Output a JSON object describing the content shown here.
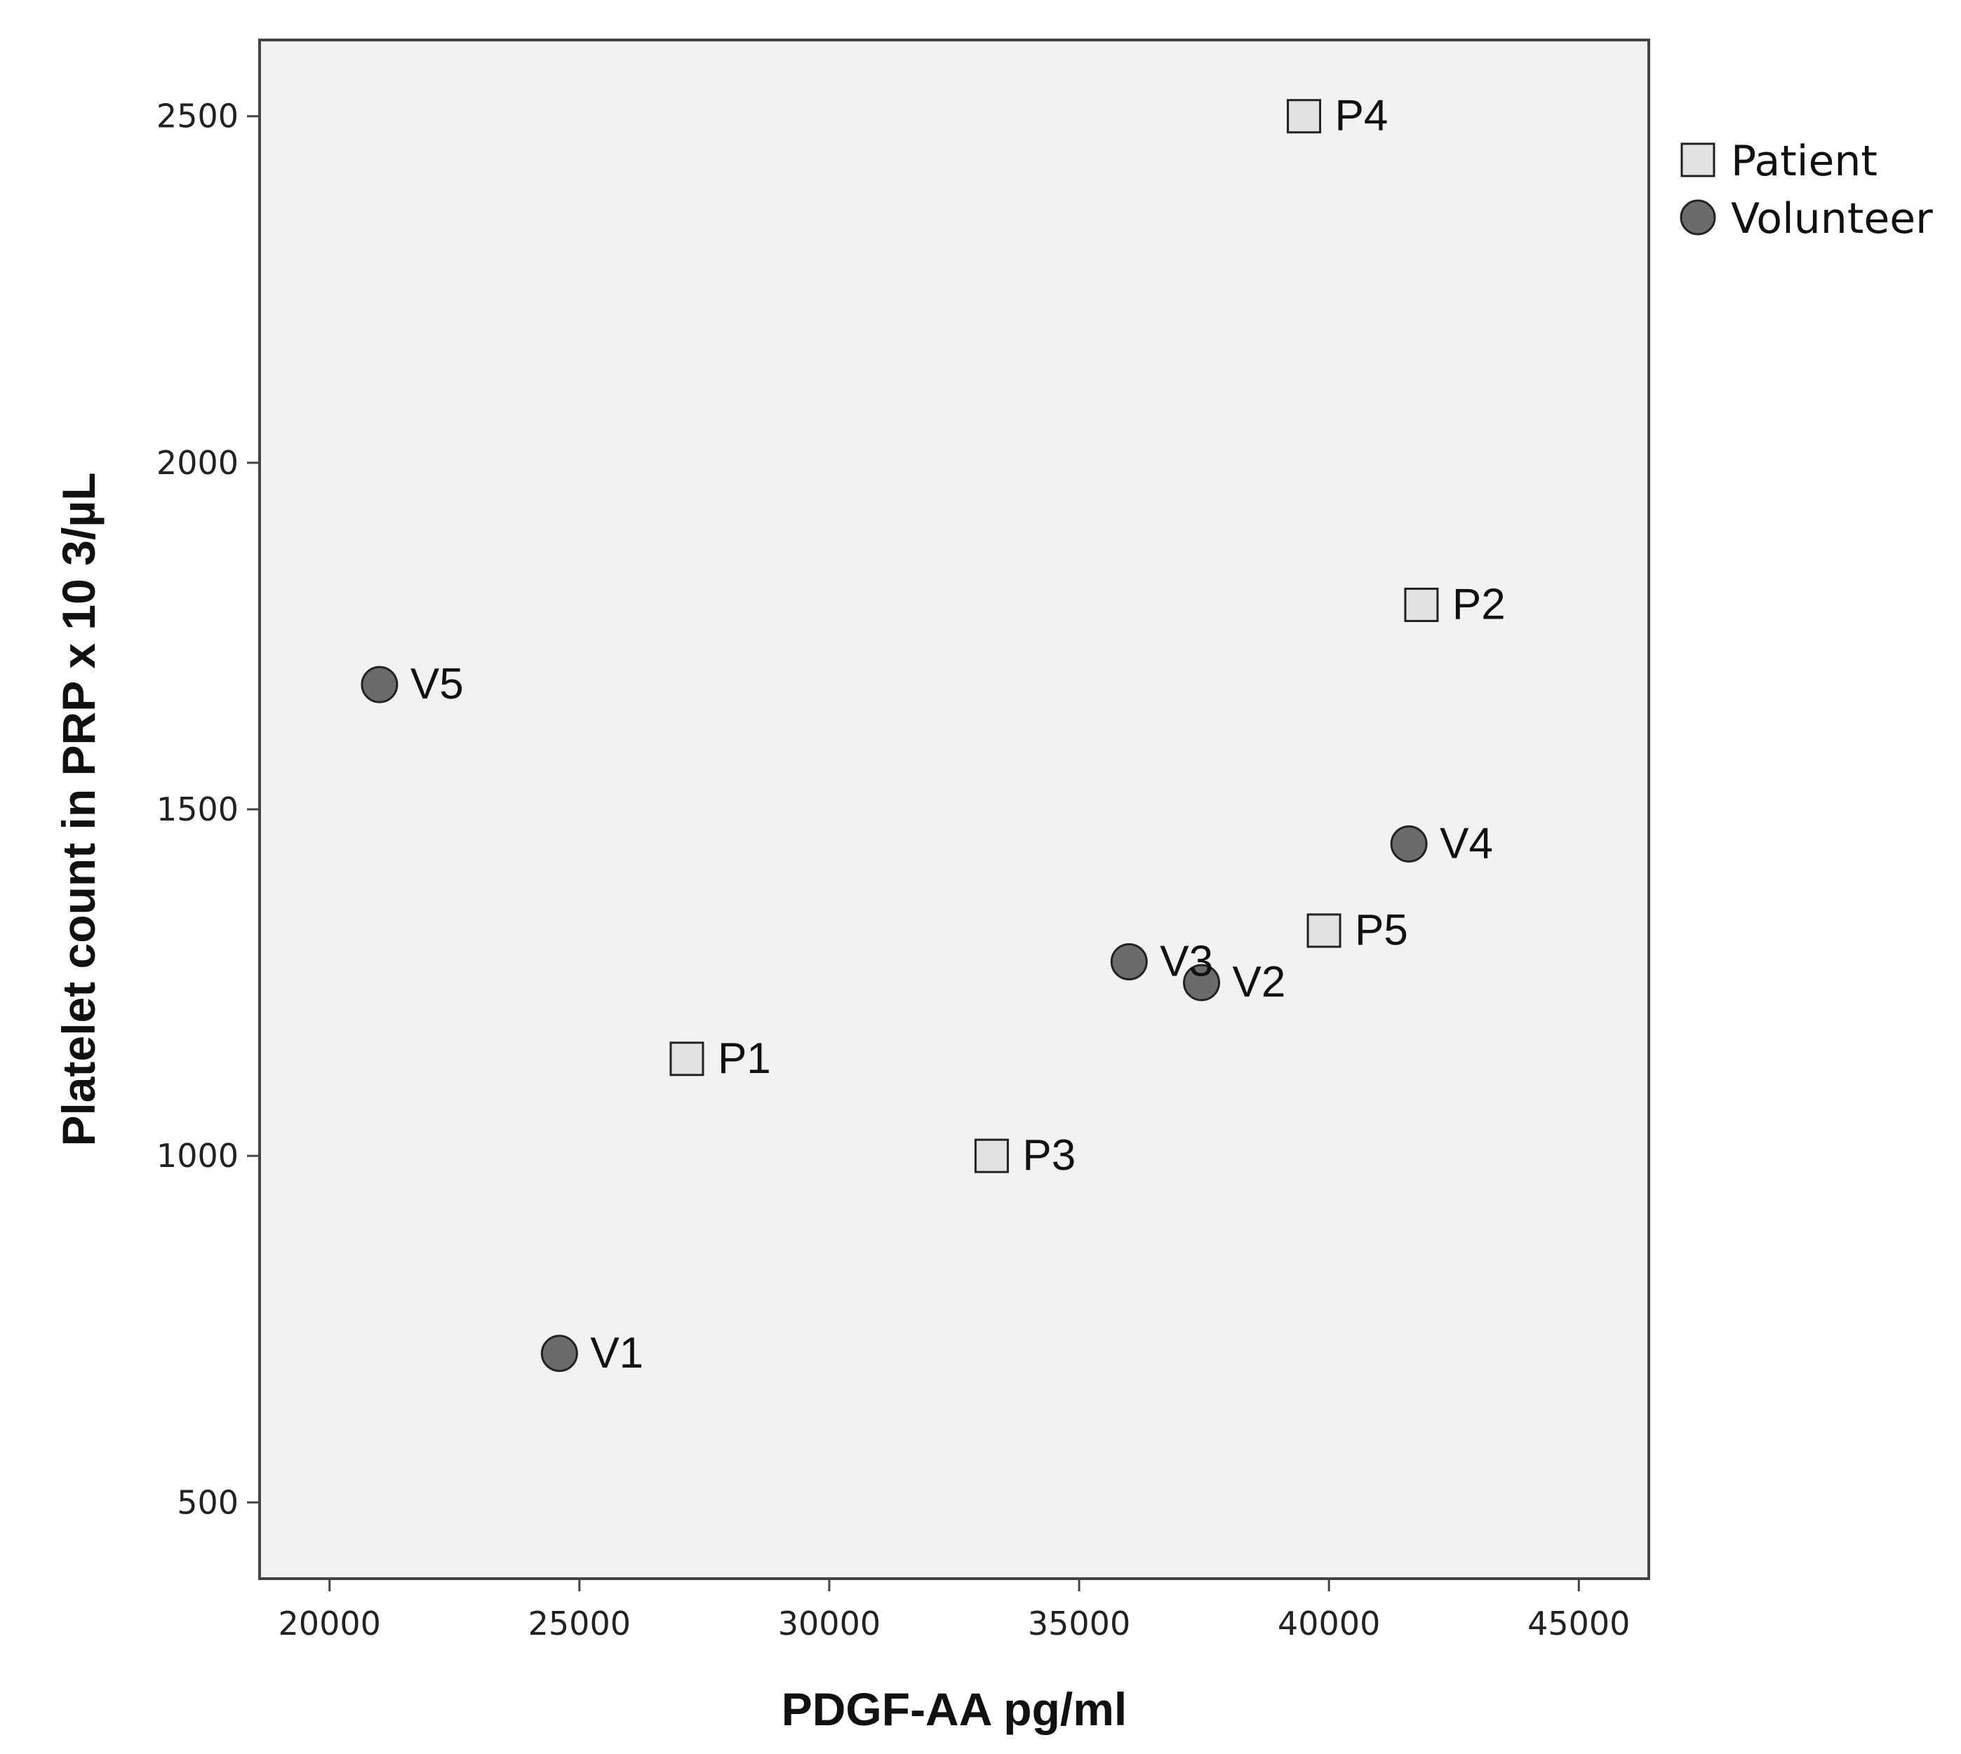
{
  "chart_data": {
    "type": "scatter",
    "title": "",
    "xlabel": "PDGF-AA pg/ml",
    "ylabel": "Platelet count in PRP x 10 3/µL",
    "xlim": [
      18600,
      46400
    ],
    "ylim": [
      390,
      2610
    ],
    "xticks": [
      20000,
      25000,
      30000,
      35000,
      40000,
      45000
    ],
    "yticks": [
      500,
      1000,
      1500,
      2000,
      2500
    ],
    "grid": false,
    "legend_position": "right-top",
    "series": [
      {
        "name": "Patient",
        "marker": "square",
        "color": "#e2e2e2",
        "points": [
          {
            "label": "P1",
            "x": 27150,
            "y": 1140
          },
          {
            "label": "P2",
            "x": 41850,
            "y": 1795
          },
          {
            "label": "P3",
            "x": 33250,
            "y": 1000
          },
          {
            "label": "P4",
            "x": 39500,
            "y": 2500
          },
          {
            "label": "P5",
            "x": 39900,
            "y": 1325
          }
        ]
      },
      {
        "name": "Volunteer",
        "marker": "circle",
        "color": "#6b6b6b",
        "points": [
          {
            "label": "V1",
            "x": 24600,
            "y": 715
          },
          {
            "label": "V2",
            "x": 37450,
            "y": 1250
          },
          {
            "label": "V3",
            "x": 36000,
            "y": 1280
          },
          {
            "label": "V4",
            "x": 41600,
            "y": 1450
          },
          {
            "label": "V5",
            "x": 21000,
            "y": 1680
          }
        ]
      }
    ]
  }
}
